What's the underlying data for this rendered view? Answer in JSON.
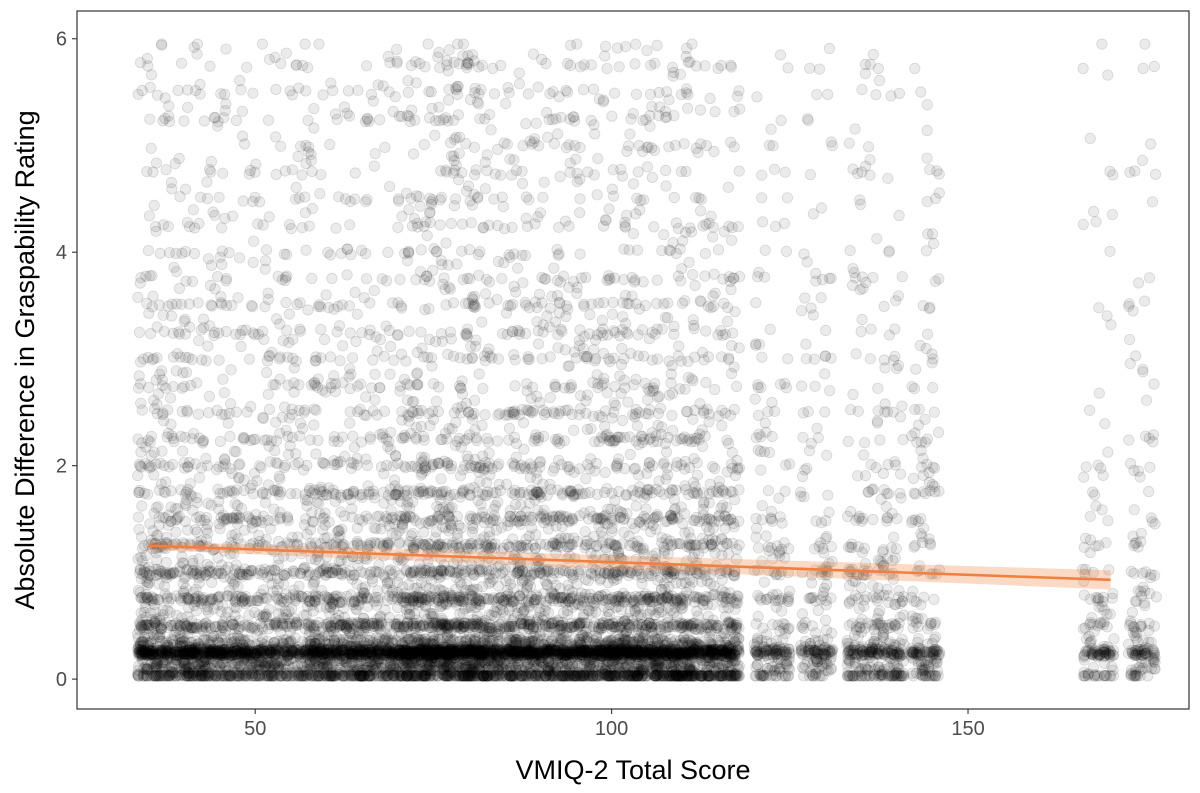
{
  "chart_data": {
    "type": "scatter",
    "title": "",
    "xlabel": "VMIQ-2 Total Score",
    "ylabel": "Absolute Difference in Graspability Rating",
    "xlim": [
      25,
      181
    ],
    "ylim": [
      -0.28,
      6.26
    ],
    "x_ticks": [
      50,
      100,
      150
    ],
    "y_ticks": [
      0,
      2,
      4,
      6
    ],
    "grid": false,
    "legend": "none",
    "point_style": {
      "color": "#000000",
      "opacity": 0.08,
      "shape": "circle"
    },
    "point_clusters": [
      {
        "x_range": [
          33.5,
          44.0
        ],
        "count": 1100
      },
      {
        "x_range": [
          44.0,
          57.0
        ],
        "count": 1100
      },
      {
        "x_range": [
          57.0,
          71.0
        ],
        "count": 1400
      },
      {
        "x_range": [
          71.0,
          82.0
        ],
        "count": 1600
      },
      {
        "x_range": [
          82.0,
          98.0
        ],
        "count": 1800
      },
      {
        "x_range": [
          98.0,
          111.0
        ],
        "count": 1600
      },
      {
        "x_range": [
          111.0,
          118.0
        ],
        "count": 700
      },
      {
        "x_range": [
          120.0,
          125.0
        ],
        "count": 240
      },
      {
        "x_range": [
          126.5,
          131.0
        ],
        "count": 200
      },
      {
        "x_range": [
          133.0,
          141.0
        ],
        "count": 420
      },
      {
        "x_range": [
          142.0,
          146.0
        ],
        "count": 200
      },
      {
        "x_range": [
          166.0,
          170.5
        ],
        "count": 150
      },
      {
        "x_range": [
          172.5,
          176.5
        ],
        "count": 150
      }
    ],
    "series": [
      {
        "type": "regression_line",
        "color": "#f08040",
        "x": [
          35,
          170
        ],
        "y": [
          1.25,
          0.93
        ],
        "ci_lower": [
          1.21,
          0.84
        ],
        "ci_upper": [
          1.29,
          1.02
        ]
      }
    ]
  }
}
